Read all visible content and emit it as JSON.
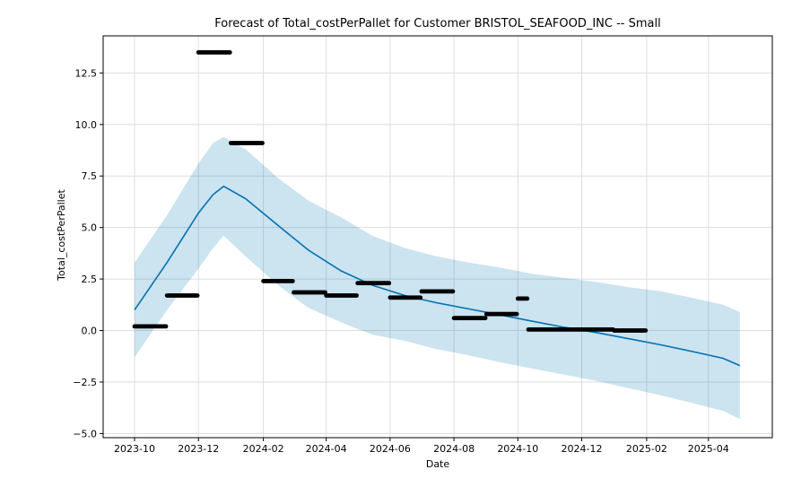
{
  "chart_data": {
    "type": "line",
    "title": "Forecast of Total_costPerPallet for Customer BRISTOL_SEAFOOD_INC -- Small",
    "xlabel": "Date",
    "ylabel": "Total_costPerPallet",
    "x_axis_kind": "date",
    "xlim": [
      "2023-09-01",
      "2025-06-01"
    ],
    "ylim": [
      -5.2,
      14.3
    ],
    "x_ticks": [
      "2023-10",
      "2023-12",
      "2024-02",
      "2024-04",
      "2024-06",
      "2024-08",
      "2024-10",
      "2024-12",
      "2025-02",
      "2025-04"
    ],
    "y_ticks": [
      "−5.0",
      "−2.5",
      "0.0",
      "2.5",
      "5.0",
      "7.5",
      "10.0",
      "12.5"
    ],
    "grid": true,
    "colors": {
      "forecast_line": "#0072B2",
      "interval_fill": "#0072B2",
      "observed": "#000000",
      "grid": "#dddddd"
    },
    "series": [
      {
        "kind": "forecast",
        "x": [
          "2023-10-01",
          "2023-11-01",
          "2023-12-01",
          "2023-12-15",
          "2023-12-25",
          "2024-01-15",
          "2024-02-15",
          "2024-03-15",
          "2024-04-15",
          "2024-05-15",
          "2024-06-15",
          "2024-07-15",
          "2024-08-15",
          "2024-09-15",
          "2024-10-15",
          "2024-11-15",
          "2024-12-15",
          "2025-01-15",
          "2025-02-15",
          "2025-03-15",
          "2025-04-15",
          "2025-05-01"
        ],
        "values": [
          1.0,
          3.3,
          5.7,
          6.6,
          7.0,
          6.4,
          5.1,
          3.9,
          2.9,
          2.2,
          1.7,
          1.35,
          1.05,
          0.75,
          0.45,
          0.15,
          -0.1,
          -0.4,
          -0.7,
          -1.0,
          -1.35,
          -1.7
        ],
        "lower": [
          -1.3,
          1.0,
          3.0,
          4.0,
          4.6,
          3.6,
          2.2,
          1.1,
          0.4,
          -0.2,
          -0.5,
          -0.9,
          -1.2,
          -1.55,
          -1.85,
          -2.15,
          -2.45,
          -2.8,
          -3.15,
          -3.5,
          -3.9,
          -4.3
        ],
        "upper": [
          3.3,
          5.6,
          8.1,
          9.1,
          9.4,
          8.8,
          7.4,
          6.3,
          5.5,
          4.6,
          4.0,
          3.6,
          3.3,
          3.05,
          2.75,
          2.55,
          2.35,
          2.1,
          1.9,
          1.6,
          1.25,
          0.9
        ]
      },
      {
        "kind": "observed",
        "segments": [
          {
            "start": "2023-10-01",
            "end": "2023-10-31",
            "value": 0.2
          },
          {
            "start": "2023-11-01",
            "end": "2023-11-30",
            "value": 1.7
          },
          {
            "start": "2023-12-01",
            "end": "2023-12-31",
            "value": 13.5
          },
          {
            "start": "2024-01-01",
            "end": "2024-01-31",
            "value": 9.1
          },
          {
            "start": "2024-02-01",
            "end": "2024-02-29",
            "value": 2.4
          },
          {
            "start": "2024-03-01",
            "end": "2024-03-31",
            "value": 1.85
          },
          {
            "start": "2024-04-01",
            "end": "2024-04-30",
            "value": 1.7
          },
          {
            "start": "2024-05-01",
            "end": "2024-05-31",
            "value": 2.3
          },
          {
            "start": "2024-06-01",
            "end": "2024-06-30",
            "value": 1.6
          },
          {
            "start": "2024-07-01",
            "end": "2024-07-31",
            "value": 1.9
          },
          {
            "start": "2024-08-01",
            "end": "2024-08-31",
            "value": 0.6
          },
          {
            "start": "2024-09-01",
            "end": "2024-09-30",
            "value": 0.8
          },
          {
            "start": "2024-10-01",
            "end": "2024-10-10",
            "value": 1.55
          },
          {
            "start": "2024-10-11",
            "end": "2024-12-31",
            "value": 0.05
          },
          {
            "start": "2025-01-01",
            "end": "2025-01-31",
            "value": 0.0
          }
        ]
      }
    ]
  }
}
